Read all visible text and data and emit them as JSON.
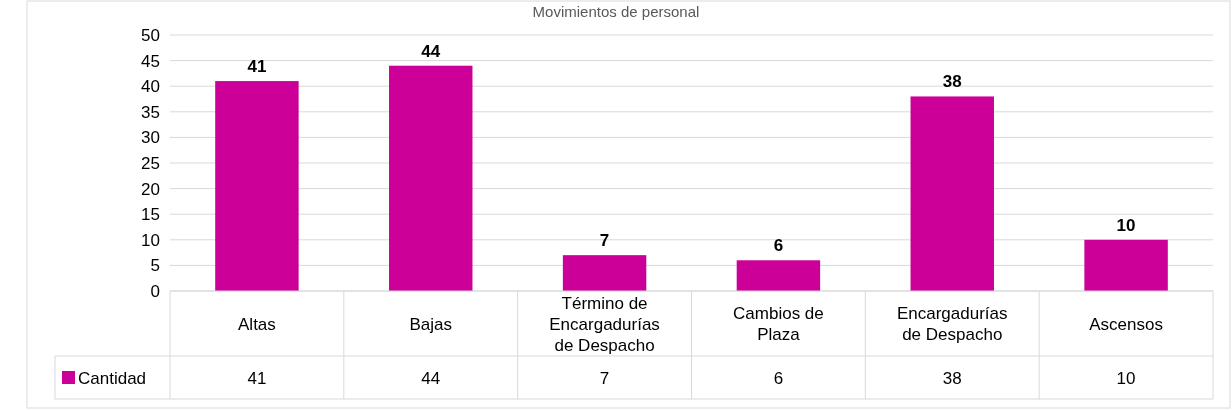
{
  "chart_data": {
    "type": "bar",
    "title": "Movimientos de personal",
    "categories": [
      "Altas",
      "Bajas",
      "Término de Encargadurías de Despacho",
      "Cambios de Plaza",
      "Encargadurías de Despacho",
      "Ascensos"
    ],
    "series": [
      {
        "name": "Cantidad",
        "color": "#cc0099",
        "values": [
          41,
          44,
          7,
          6,
          38,
          10
        ],
        "value_labels": [
          "41",
          "44",
          "7",
          "6",
          "38",
          "10"
        ]
      }
    ],
    "ylim": [
      0,
      50
    ],
    "yticks": [
      0,
      5,
      10,
      15,
      20,
      25,
      30,
      35,
      40,
      45,
      50
    ],
    "grid": "y",
    "annotations": [
      "41",
      "44",
      "7",
      "6",
      "38",
      "10"
    ],
    "legend": "bottom left"
  }
}
